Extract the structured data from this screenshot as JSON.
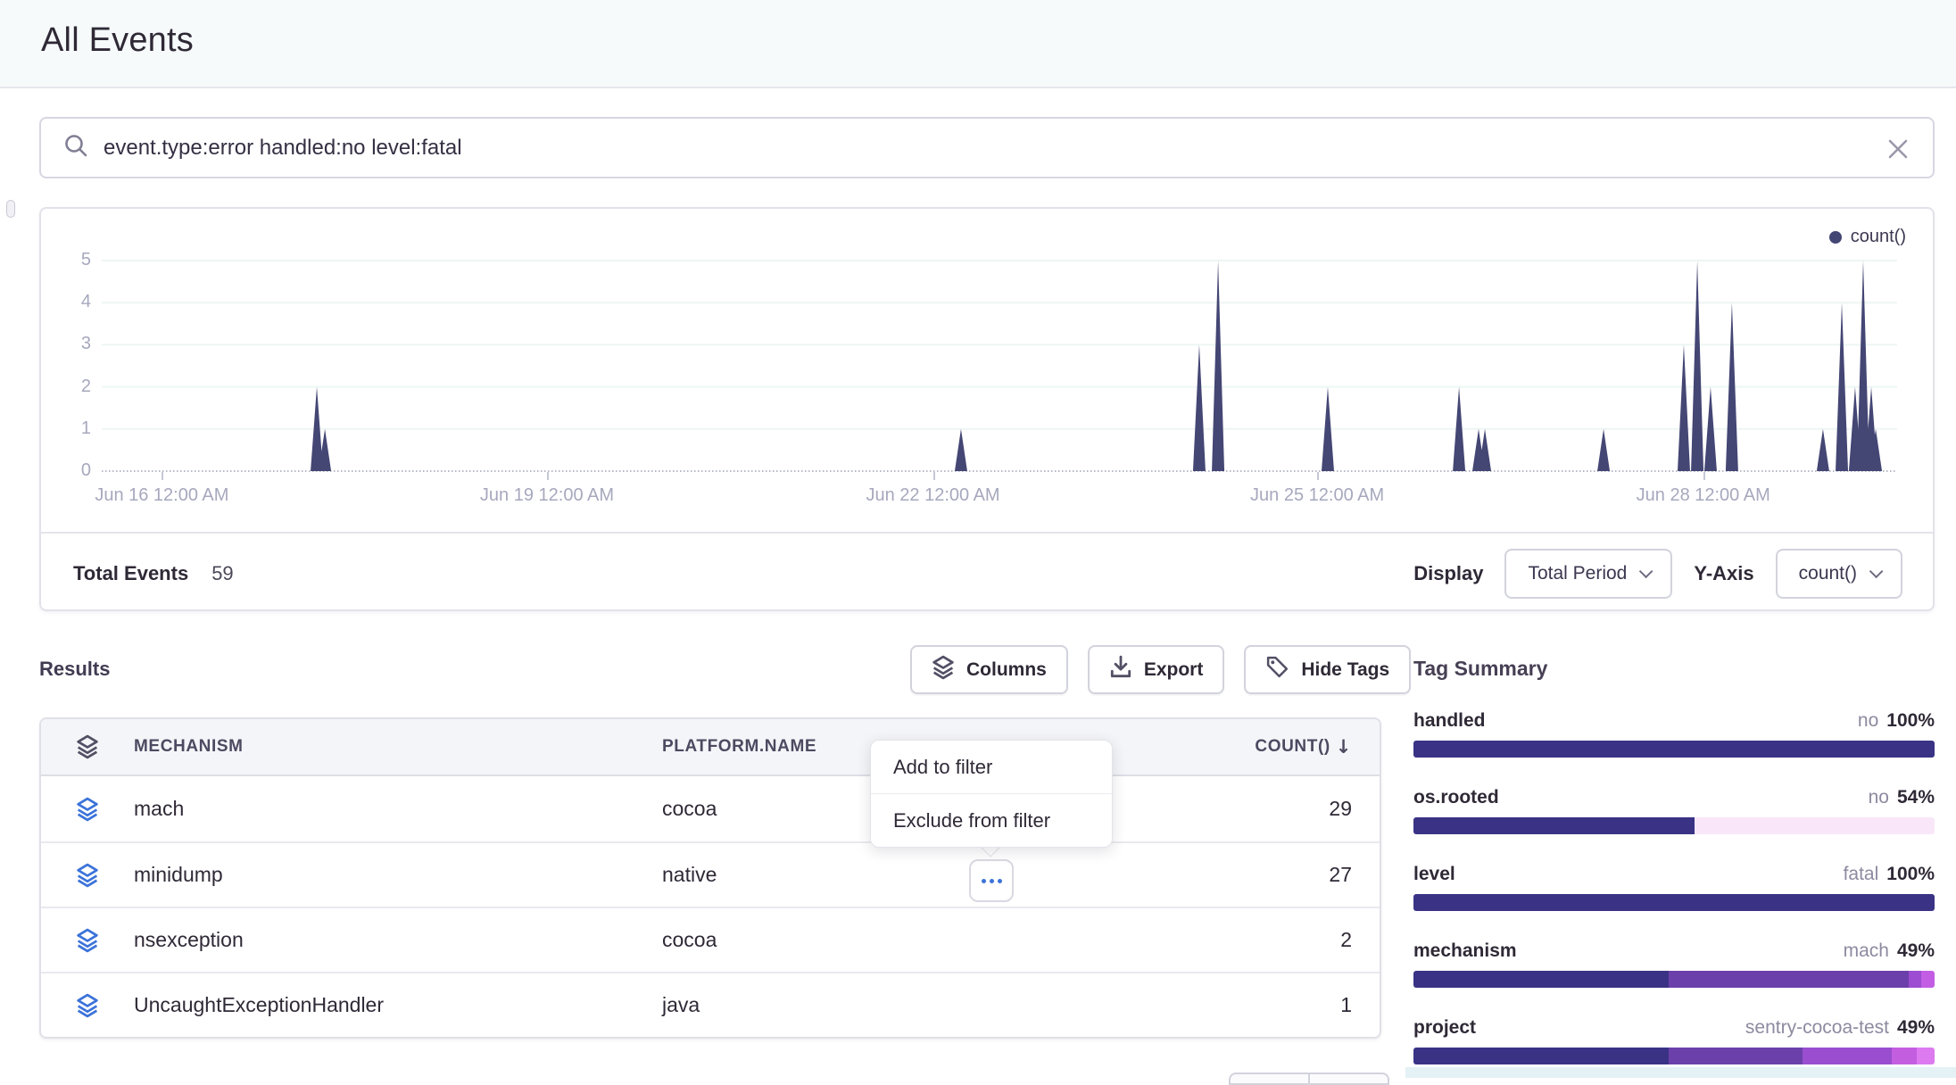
{
  "header": {
    "title": "All Events"
  },
  "search": {
    "query": "event.type:error handled:no level:fatal"
  },
  "chart_data": {
    "type": "area",
    "title": "",
    "xlabel": "",
    "ylabel": "",
    "ylim": [
      0,
      5
    ],
    "yticks": [
      0,
      1,
      2,
      3,
      4,
      5
    ],
    "grid": true,
    "legend": {
      "position": "top-right"
    },
    "xticks": [
      {
        "pos": 0.0335,
        "label": "Jun 16 12:00 AM"
      },
      {
        "pos": 0.248,
        "label": "Jun 19 12:00 AM"
      },
      {
        "pos": 0.463,
        "label": "Jun 22 12:00 AM"
      },
      {
        "pos": 0.677,
        "label": "Jun 25 12:00 AM"
      },
      {
        "pos": 0.892,
        "label": "Jun 28 12:00 AM"
      }
    ],
    "series": [
      {
        "name": "count()",
        "color": "#444674",
        "baseline": 0,
        "points": [
          {
            "pos": 0.1198,
            "value": 2
          },
          {
            "pos": 0.1243,
            "value": 1
          },
          {
            "pos": 0.4786,
            "value": 1
          },
          {
            "pos": 0.6113,
            "value": 3
          },
          {
            "pos": 0.6218,
            "value": 5
          },
          {
            "pos": 0.6829,
            "value": 2
          },
          {
            "pos": 0.756,
            "value": 2
          },
          {
            "pos": 0.7669,
            "value": 1
          },
          {
            "pos": 0.7704,
            "value": 1
          },
          {
            "pos": 0.8365,
            "value": 1
          },
          {
            "pos": 0.8812,
            "value": 3
          },
          {
            "pos": 0.8887,
            "value": 5
          },
          {
            "pos": 0.8961,
            "value": 2
          },
          {
            "pos": 0.908,
            "value": 4
          },
          {
            "pos": 0.9587,
            "value": 1
          },
          {
            "pos": 0.9692,
            "value": 4
          },
          {
            "pos": 0.9766,
            "value": 2
          },
          {
            "pos": 0.9811,
            "value": 5
          },
          {
            "pos": 0.9856,
            "value": 2
          },
          {
            "pos": 0.9881,
            "value": 1
          }
        ]
      }
    ]
  },
  "chart_footer": {
    "total_label": "Total Events",
    "total_value": "59",
    "display_label": "Display",
    "display_button": "Total Period",
    "yaxis_label": "Y-Axis",
    "yaxis_button": "count()"
  },
  "results": {
    "heading": "Results",
    "buttons": [
      {
        "label": "Columns",
        "icon": "layers-icon"
      },
      {
        "label": "Export",
        "icon": "download-icon"
      },
      {
        "label": "Hide Tags",
        "icon": "tag-icon"
      }
    ],
    "table": {
      "columns": [
        {
          "label": "MECHANISM"
        },
        {
          "label": "PLATFORM.NAME"
        },
        {
          "label": "COUNT()",
          "sort": "desc",
          "sort_icon": "↓"
        }
      ],
      "rows": [
        {
          "mechanism": "mach",
          "platform": "cocoa",
          "count": "29"
        },
        {
          "mechanism": "minidump",
          "platform": "native",
          "count": "27"
        },
        {
          "mechanism": "nsexception",
          "platform": "cocoa",
          "count": "2"
        },
        {
          "mechanism": "UncaughtExceptionHandler",
          "platform": "java",
          "count": "1"
        }
      ]
    }
  },
  "context_menu": {
    "items": [
      {
        "label": "Add to filter"
      },
      {
        "label": "Exclude from filter"
      }
    ]
  },
  "tag_summary": {
    "heading": "Tag Summary",
    "colors": {
      "dark": "#3A3385",
      "pink": "#F9E7F9"
    },
    "tags": [
      {
        "name": "handled",
        "value": "no",
        "percent": "100%",
        "segments": [
          {
            "color": "#3A3385",
            "pct": 100
          }
        ]
      },
      {
        "name": "os.rooted",
        "value": "no",
        "percent": "54%",
        "segments": [
          {
            "color": "#3A3385",
            "pct": 54
          },
          {
            "color": "#F9E7F9",
            "pct": 46
          }
        ]
      },
      {
        "name": "level",
        "value": "fatal",
        "percent": "100%",
        "segments": [
          {
            "color": "#3A3385",
            "pct": 100
          }
        ]
      },
      {
        "name": "mechanism",
        "value": "mach",
        "percent": "49%",
        "segments": [
          {
            "color": "#3A3385",
            "pct": 49
          },
          {
            "color": "#6C40AA",
            "pct": 46
          },
          {
            "color": "#9C4DD1",
            "pct": 2.5
          },
          {
            "color": "#C35EE4",
            "pct": 2.5
          }
        ]
      },
      {
        "name": "project",
        "value": "sentry-cocoa-test",
        "percent": "49%",
        "segments": [
          {
            "color": "#3A3385",
            "pct": 49
          },
          {
            "color": "#6C40AA",
            "pct": 25.7
          },
          {
            "color": "#9A4ECF",
            "pct": 17
          },
          {
            "color": "#C45EE0",
            "pct": 4.9
          },
          {
            "color": "#DD7AF0",
            "pct": 3.4
          }
        ]
      }
    ]
  }
}
